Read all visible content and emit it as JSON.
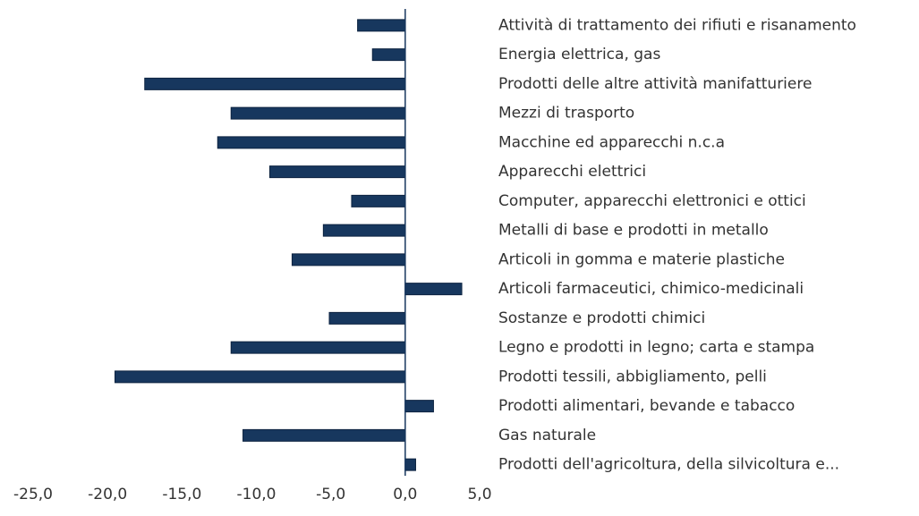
{
  "chart_data": {
    "type": "barh",
    "categories": [
      "Attività di trattamento dei rifiuti e risanamento",
      "Energia elettrica, gas",
      "Prodotti delle altre attività manifatturiere",
      "Mezzi di trasporto",
      "Macchine ed apparecchi  n.c.a",
      "Apparecchi elettrici",
      "Computer, apparecchi elettronici e ottici",
      "Metalli di base e prodotti in metallo",
      "Articoli in gomma e materie plastiche",
      "Articoli farmaceutici, chimico-medicinali",
      "Sostanze e prodotti chimici",
      "Legno e prodotti in legno; carta e stampa",
      "Prodotti tessili, abbigliamento, pelli",
      "Prodotti alimentari, bevande e tabacco",
      "Gas naturale",
      "Prodotti dell'agricoltura, della silvicoltura e..."
    ],
    "values": [
      -3.2,
      -2.2,
      -17.5,
      -11.7,
      -12.6,
      -9.1,
      -3.6,
      -5.5,
      -7.6,
      3.8,
      -5.1,
      -11.7,
      -19.5,
      1.9,
      -10.9,
      0.7
    ],
    "color": "#17375e",
    "xlim": [
      -25,
      5
    ],
    "xticks": [
      {
        "value": -25,
        "label": "-25,0"
      },
      {
        "value": -20,
        "label": "-20,0"
      },
      {
        "value": -15,
        "label": "-15,0"
      },
      {
        "value": -10,
        "label": "-10,0"
      },
      {
        "value": -5,
        "label": "-5,0"
      },
      {
        "value": 0,
        "label": "0,0"
      },
      {
        "value": 5,
        "label": "5,0"
      }
    ],
    "grid": false
  }
}
